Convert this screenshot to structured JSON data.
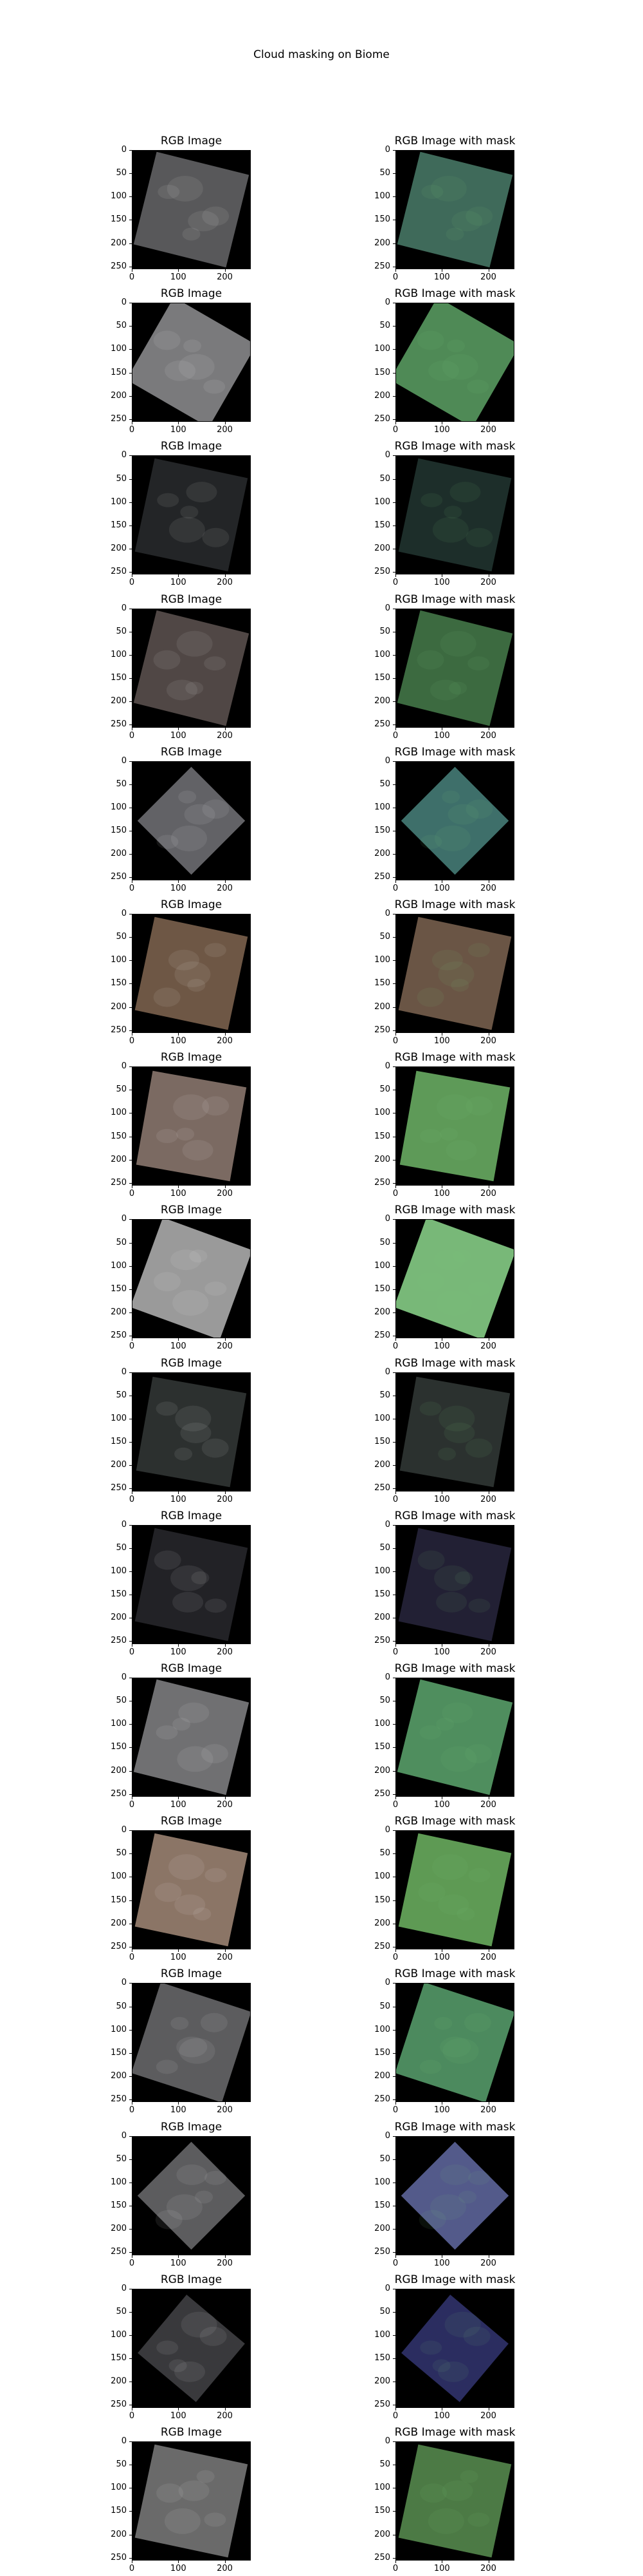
{
  "figure": {
    "title": "Cloud masking on Biome"
  },
  "axes": {
    "left_title": "RGB Image",
    "right_title": "RGB Image with mask",
    "y_ticks": [
      "0",
      "50",
      "100",
      "150",
      "200",
      "250"
    ],
    "x_ticks": [
      "0",
      "100",
      "200"
    ]
  },
  "rows": [
    {
      "rgb": "#58585a",
      "mask": "#3f6a5a",
      "angle": 14,
      "shape": "rot"
    },
    {
      "rgb": "#7a7a7c",
      "mask": "#4f8a56",
      "angle": 30,
      "shape": "rot"
    },
    {
      "rgb": "#232527",
      "mask": "#1d2e2a",
      "angle": 12,
      "shape": "rot"
    },
    {
      "rgb": "#504745",
      "mask": "#3c6a40",
      "angle": 14,
      "shape": "rot"
    },
    {
      "rgb": "#626266",
      "mask": "#3e6f6a",
      "angle": 45,
      "shape": "diamond"
    },
    {
      "rgb": "#6e5745",
      "mask": "#6a5545",
      "angle": 12,
      "shape": "rot"
    },
    {
      "rgb": "#7b6a62",
      "mask": "#5e9a58",
      "angle": 10,
      "shape": "rot"
    },
    {
      "rgb": "#9a9a9a",
      "mask": "#78b878",
      "angle": 20,
      "shape": "rot"
    },
    {
      "rgb": "#2c302f",
      "mask": "#2b312f",
      "angle": 10,
      "shape": "rot"
    },
    {
      "rgb": "#222226",
      "mask": "#222034",
      "angle": 12,
      "shape": "rot"
    },
    {
      "rgb": "#707072",
      "mask": "#4f8e5e",
      "angle": 14,
      "shape": "rot"
    },
    {
      "rgb": "#8b7566",
      "mask": "#5e9a54",
      "angle": 12,
      "shape": "rot"
    },
    {
      "rgb": "#5c5c5e",
      "mask": "#4c8a5e",
      "angle": 18,
      "shape": "rot"
    },
    {
      "rgb": "#5c5c5e",
      "mask": "#535a8a",
      "angle": 45,
      "shape": "diamond"
    },
    {
      "rgb": "#39393c",
      "mask": "#2b2d60",
      "angle": 40,
      "shape": "diamond"
    },
    {
      "rgb": "#6a6a6a",
      "mask": "#4c7a45",
      "angle": 12,
      "shape": "rot"
    }
  ]
}
